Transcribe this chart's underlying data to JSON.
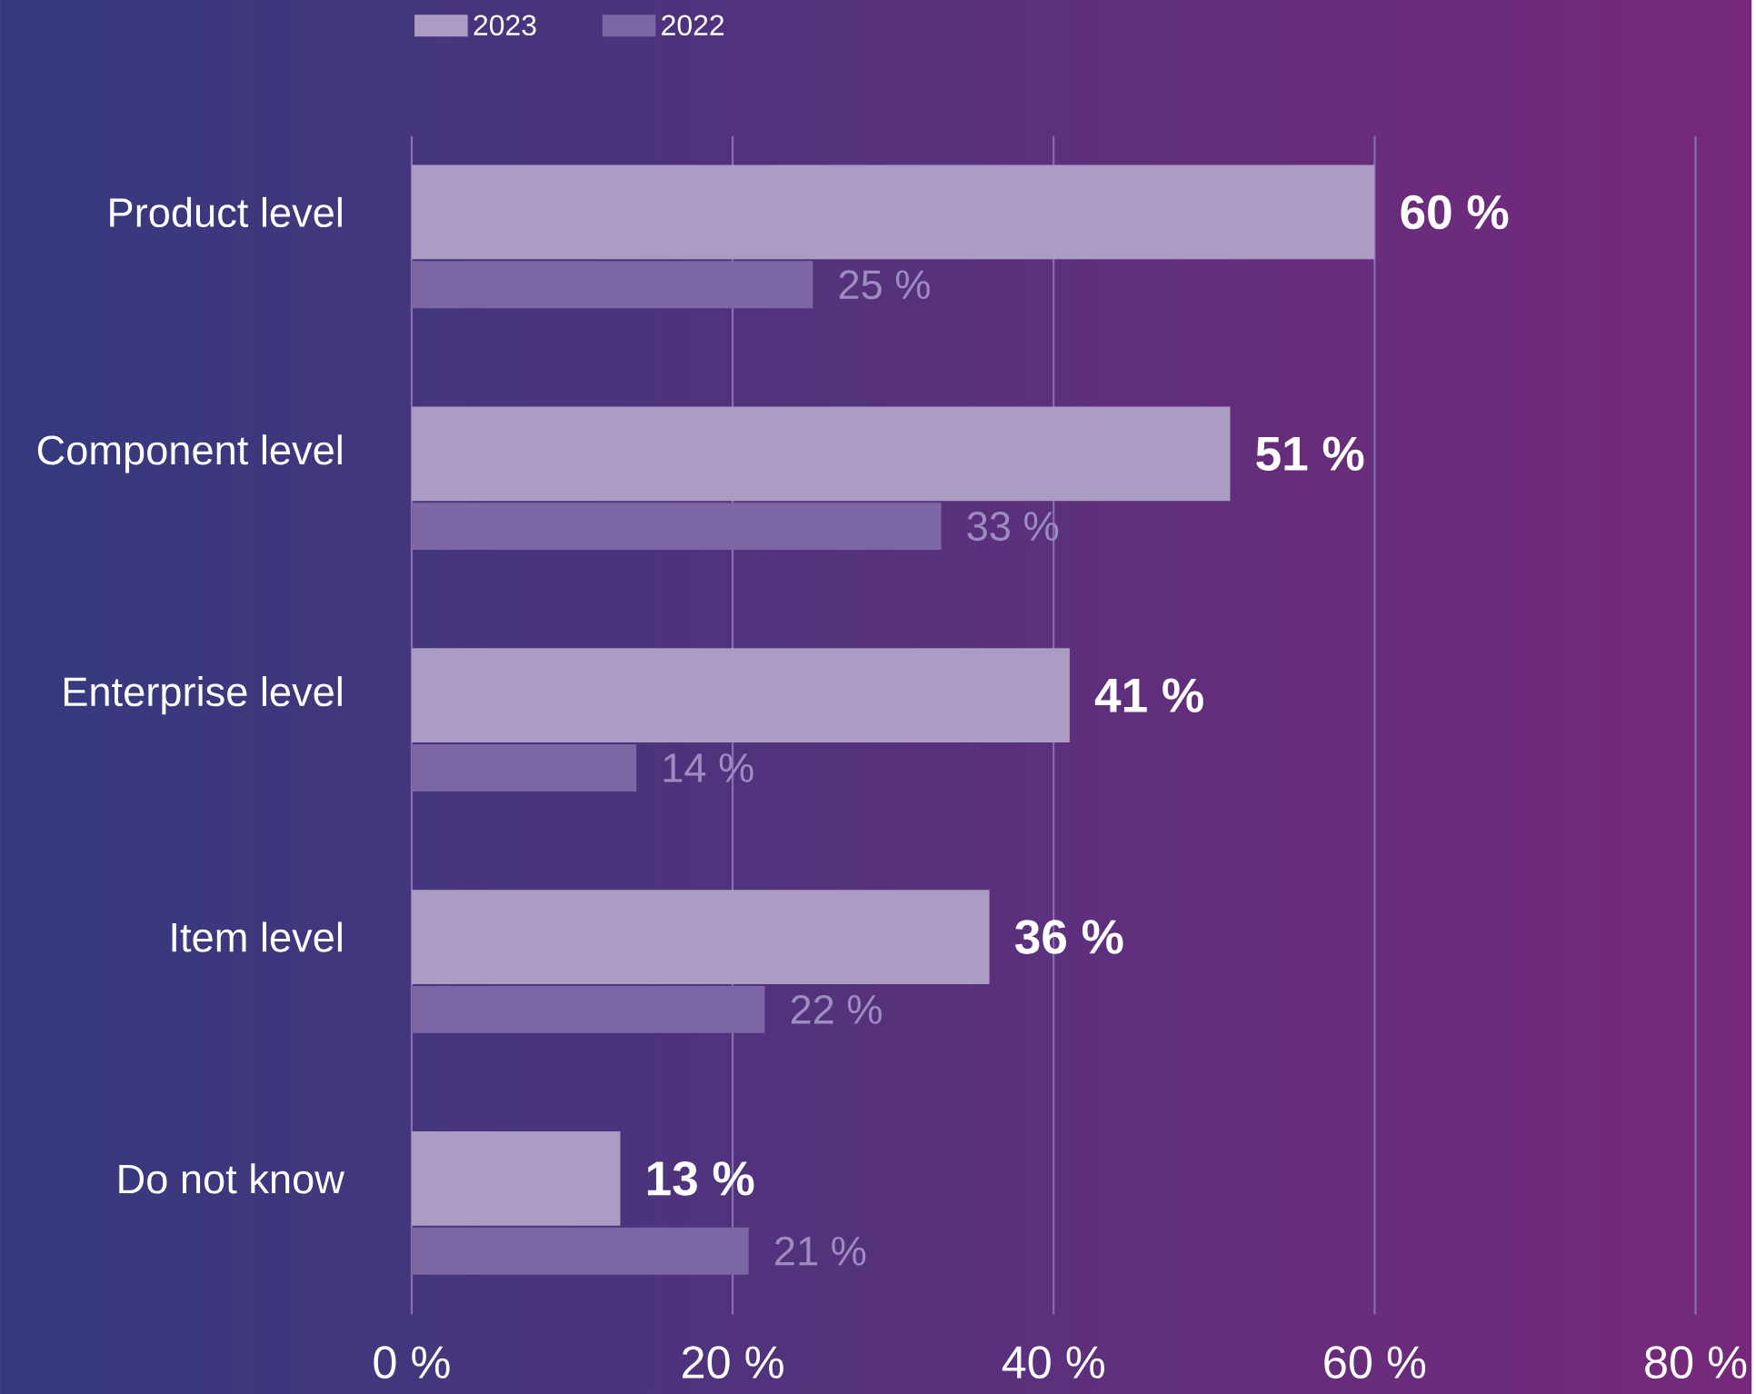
{
  "chart_data": {
    "type": "bar",
    "orientation": "horizontal",
    "categories": [
      "Product level",
      "Component level",
      "Enterprise level",
      "Item level",
      "Do not know"
    ],
    "series": [
      {
        "name": "2023",
        "color": "#ab9cc3",
        "values": [
          60,
          51,
          41,
          36,
          13
        ],
        "value_labels": [
          "60 %",
          "51 %",
          "41 %",
          "36 %",
          "13 %"
        ]
      },
      {
        "name": "2022",
        "color": "#7c66a3",
        "values": [
          25,
          33,
          14,
          22,
          21
        ],
        "value_labels": [
          "25 %",
          "33 %",
          "14 %",
          "22 %",
          "21 %"
        ]
      }
    ],
    "xlim": [
      0,
      80
    ],
    "xticks": [
      {
        "value": 0,
        "label": "0 %"
      },
      {
        "value": 20,
        "label": "20 %"
      },
      {
        "value": 40,
        "label": "40 %"
      },
      {
        "value": 60,
        "label": "60 %"
      },
      {
        "value": 80,
        "label": "80 %"
      }
    ],
    "grid": "x",
    "legend": "top"
  }
}
